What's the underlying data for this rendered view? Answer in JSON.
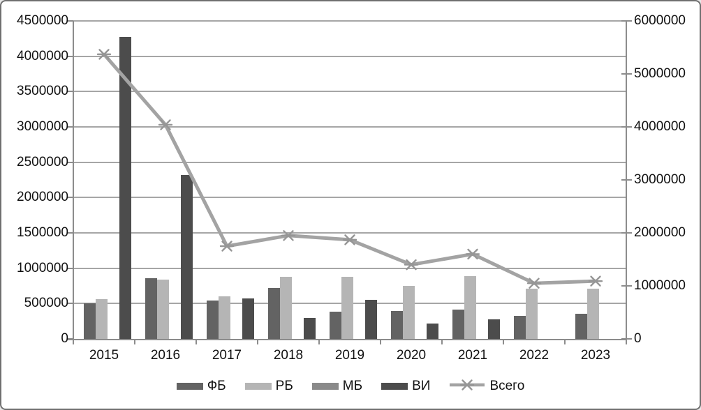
{
  "chart_data": {
    "type": "combo-bar-line",
    "title": "",
    "xlabel": "",
    "ylabel": "",
    "grid": true,
    "legend_position": "bottom",
    "categories": [
      "2015",
      "2016",
      "2017",
      "2018",
      "2019",
      "2020",
      "2021",
      "2022",
      "2023"
    ],
    "series": [
      {
        "key": "fb",
        "name": "ФБ",
        "type": "bar",
        "axis": "left",
        "color": "#636363",
        "values": [
          500000,
          860000,
          540000,
          720000,
          380000,
          390000,
          410000,
          330000,
          360000
        ]
      },
      {
        "key": "rb",
        "name": "РБ",
        "type": "bar",
        "axis": "left",
        "color": "#b5b5b5",
        "values": [
          560000,
          840000,
          600000,
          880000,
          880000,
          750000,
          890000,
          710000,
          710000
        ]
      },
      {
        "key": "mb",
        "name": "МБ",
        "type": "bar",
        "axis": "left",
        "color": "#8a8a8a",
        "values": [
          0,
          0,
          0,
          0,
          0,
          0,
          0,
          0,
          0
        ]
      },
      {
        "key": "vi",
        "name": "ВИ",
        "type": "bar",
        "axis": "left",
        "color": "#4c4c4c",
        "values": [
          4270000,
          2320000,
          570000,
          300000,
          550000,
          220000,
          280000,
          0,
          0
        ]
      },
      {
        "key": "vsego",
        "name": "Всего",
        "type": "line",
        "axis": "right",
        "color": "#a3a3a3",
        "marker": "star",
        "values": [
          5370000,
          4040000,
          1750000,
          1950000,
          1870000,
          1400000,
          1600000,
          1050000,
          1090000
        ]
      }
    ],
    "left_axis": {
      "min": 0,
      "max": 4500000,
      "step": 500000,
      "tick_labels": [
        "4500000",
        "4000000",
        "3500000",
        "3000000",
        "2500000",
        "2000000",
        "1500000",
        "1000000",
        "500000",
        "0"
      ]
    },
    "right_axis": {
      "min": 0,
      "max": 6000000,
      "step": 1000000,
      "tick_labels": [
        "6000000",
        "5000000",
        "4000000",
        "3000000",
        "2000000",
        "1000000",
        "0"
      ]
    }
  },
  "colors": {
    "gridline": "#a6a6a6",
    "axis": "#8c8c8c",
    "marker": "#969696",
    "text": "#111111",
    "background": "#ffffff",
    "border": "#6f6f6f"
  }
}
